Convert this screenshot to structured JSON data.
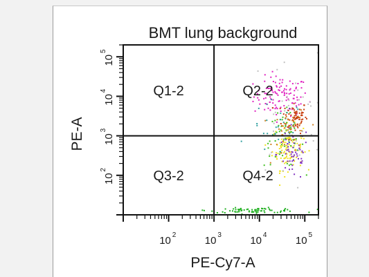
{
  "chart_data": {
    "type": "scatter",
    "title": "BMT lung background",
    "xlabel": "PE-Cy7-A",
    "ylabel": "PE-A",
    "xscale": "log",
    "yscale": "log",
    "xlim": [
      10,
      200000
    ],
    "ylim": [
      10,
      200000
    ],
    "xticks": [
      {
        "value": 100,
        "base": "10",
        "exp": "2"
      },
      {
        "value": 1000,
        "base": "10",
        "exp": "3"
      },
      {
        "value": 10000,
        "base": "10",
        "exp": "4"
      },
      {
        "value": 100000,
        "base": "10",
        "exp": "5"
      }
    ],
    "yticks": [
      {
        "value": 100,
        "base": "10",
        "exp": "2"
      },
      {
        "value": 1000,
        "base": "10",
        "exp": "3"
      },
      {
        "value": 10000,
        "base": "10",
        "exp": "4"
      },
      {
        "value": 100000,
        "base": "10",
        "exp": "5"
      }
    ],
    "quadrant_divider": {
      "x": 1000,
      "y": 1000
    },
    "quadrant_labels": [
      "Q1-2",
      "Q2-2",
      "Q3-2",
      "Q4-2"
    ],
    "clusters": [
      {
        "color": "#e020c0",
        "center": [
          30000,
          10000
        ],
        "spread": [
          0.3,
          0.25
        ],
        "count": 110
      },
      {
        "color": "#c84010",
        "center": [
          60000,
          3000
        ],
        "spread": [
          0.14,
          0.2
        ],
        "count": 70
      },
      {
        "color": "#f0e020",
        "center": [
          42000,
          500
        ],
        "spread": [
          0.17,
          0.28
        ],
        "count": 110
      },
      {
        "color": "#40c020",
        "center": [
          35000,
          800
        ],
        "spread": [
          0.22,
          0.35
        ],
        "count": 55
      },
      {
        "color": "#8030c0",
        "center": [
          55000,
          350
        ],
        "spread": [
          0.18,
          0.35
        ],
        "count": 55
      },
      {
        "color": "#30a0a0",
        "center": [
          25000,
          1500
        ],
        "spread": [
          0.3,
          0.35
        ],
        "count": 30
      },
      {
        "color": "#d08020",
        "center": [
          50000,
          1200
        ],
        "spread": [
          0.2,
          0.3
        ],
        "count": 40
      },
      {
        "color": "#20b020",
        "center": [
          8000,
          13
        ],
        "spread": [
          0.5,
          0.03
        ],
        "count": 70
      },
      {
        "color": "#c0c0c0",
        "center": [
          40000,
          3000
        ],
        "spread": [
          0.4,
          0.8
        ],
        "count": 35
      }
    ]
  }
}
